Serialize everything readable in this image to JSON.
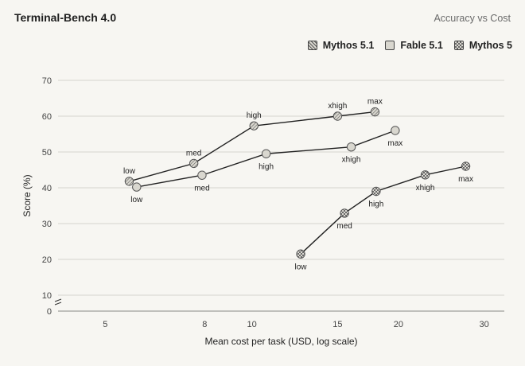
{
  "header": {
    "title": "Terminal-Bench 4.0",
    "subtitle": "Accuracy vs Cost"
  },
  "legend": [
    {
      "label": "Mythos 5.1",
      "pattern": "dense"
    },
    {
      "label": "Fable 5.1",
      "pattern": "plain"
    },
    {
      "label": "Mythos 5",
      "pattern": "check"
    }
  ],
  "colors": {
    "background": "#f7f6f2",
    "line": "#222222",
    "grid": "#d6d4ce",
    "marker_fill": "#d9d7cf",
    "marker_stroke": "#555555"
  },
  "chart_data": {
    "type": "line",
    "xlabel": "Mean cost per task (USD, log scale)",
    "ylabel": "Score (%)",
    "x_scale": "log",
    "xlim": [
      4,
      33
    ],
    "ylim": [
      0,
      70
    ],
    "x_ticks": [
      5,
      8,
      10,
      15,
      20,
      30
    ],
    "y_ticks": [
      0,
      10,
      20,
      30,
      40,
      50,
      60,
      70
    ],
    "y_axis_break": true,
    "grid": "horizontal",
    "legend_position": "top-right",
    "series": [
      {
        "name": "Mythos 5.1",
        "pattern": "dense",
        "points": [
          {
            "x": 5.6,
            "y": 41.8,
            "label": "low",
            "label_pos": "above"
          },
          {
            "x": 7.6,
            "y": 46.8,
            "label": "med",
            "label_pos": "above"
          },
          {
            "x": 10.1,
            "y": 57.3,
            "label": "high",
            "label_pos": "above"
          },
          {
            "x": 15.0,
            "y": 60.0,
            "label": "xhigh",
            "label_pos": "above"
          },
          {
            "x": 17.9,
            "y": 61.2,
            "label": "max",
            "label_pos": "above"
          }
        ]
      },
      {
        "name": "Fable 5.1",
        "pattern": "plain",
        "points": [
          {
            "x": 5.8,
            "y": 40.2,
            "label": "low",
            "label_pos": "below"
          },
          {
            "x": 7.9,
            "y": 43.5,
            "label": "med",
            "label_pos": "below"
          },
          {
            "x": 10.7,
            "y": 49.5,
            "label": "high",
            "label_pos": "below"
          },
          {
            "x": 16.0,
            "y": 51.4,
            "label": "xhigh",
            "label_pos": "below"
          },
          {
            "x": 19.7,
            "y": 56.0,
            "label": "max",
            "label_pos": "below"
          }
        ]
      },
      {
        "name": "Mythos 5",
        "pattern": "check",
        "points": [
          {
            "x": 12.6,
            "y": 21.5,
            "label": "low",
            "label_pos": "below"
          },
          {
            "x": 15.5,
            "y": 32.9,
            "label": "med",
            "label_pos": "below"
          },
          {
            "x": 18.0,
            "y": 39.0,
            "label": "high",
            "label_pos": "below"
          },
          {
            "x": 22.7,
            "y": 43.6,
            "label": "xhigh",
            "label_pos": "below"
          },
          {
            "x": 27.5,
            "y": 46.0,
            "label": "max",
            "label_pos": "below"
          }
        ]
      }
    ]
  }
}
